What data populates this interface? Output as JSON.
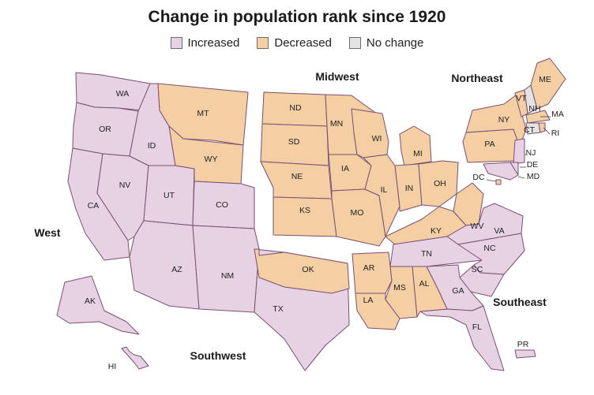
{
  "title": "Change in population rank since 1920",
  "legend": [
    {
      "key": "increased",
      "label": "Increased",
      "color": "#e7d2e3"
    },
    {
      "key": "decreased",
      "label": "Decreased",
      "color": "#f4cfa3"
    },
    {
      "key": "nochange",
      "label": "No change",
      "color": "#e3e3e3"
    }
  ],
  "regions": [
    "West",
    "Midwest",
    "Northeast",
    "Southwest",
    "Southeast"
  ],
  "states": [
    {
      "code": "WA",
      "status": "increased"
    },
    {
      "code": "OR",
      "status": "increased"
    },
    {
      "code": "CA",
      "status": "increased"
    },
    {
      "code": "ID",
      "status": "increased"
    },
    {
      "code": "NV",
      "status": "increased"
    },
    {
      "code": "UT",
      "status": "increased"
    },
    {
      "code": "MT",
      "status": "decreased"
    },
    {
      "code": "WY",
      "status": "decreased"
    },
    {
      "code": "CO",
      "status": "increased"
    },
    {
      "code": "AZ",
      "status": "increased"
    },
    {
      "code": "NM",
      "status": "increased"
    },
    {
      "code": "TX",
      "status": "increased"
    },
    {
      "code": "OK",
      "status": "decreased"
    },
    {
      "code": "ND",
      "status": "decreased"
    },
    {
      "code": "SD",
      "status": "decreased"
    },
    {
      "code": "NE",
      "status": "decreased"
    },
    {
      "code": "KS",
      "status": "decreased"
    },
    {
      "code": "MN",
      "status": "decreased"
    },
    {
      "code": "IA",
      "status": "decreased"
    },
    {
      "code": "MO",
      "status": "decreased"
    },
    {
      "code": "WI",
      "status": "decreased"
    },
    {
      "code": "IL",
      "status": "decreased"
    },
    {
      "code": "MI",
      "status": "decreased"
    },
    {
      "code": "IN",
      "status": "decreased"
    },
    {
      "code": "OH",
      "status": "decreased"
    },
    {
      "code": "KY",
      "status": "decreased"
    },
    {
      "code": "WV",
      "status": "decreased"
    },
    {
      "code": "VA",
      "status": "increased"
    },
    {
      "code": "TN",
      "status": "increased"
    },
    {
      "code": "NC",
      "status": "increased"
    },
    {
      "code": "SC",
      "status": "increased"
    },
    {
      "code": "GA",
      "status": "increased"
    },
    {
      "code": "FL",
      "status": "increased"
    },
    {
      "code": "AL",
      "status": "decreased"
    },
    {
      "code": "MS",
      "status": "decreased"
    },
    {
      "code": "AR",
      "status": "decreased"
    },
    {
      "code": "LA",
      "status": "decreased"
    },
    {
      "code": "PA",
      "status": "decreased"
    },
    {
      "code": "NY",
      "status": "decreased"
    },
    {
      "code": "VT",
      "status": "decreased"
    },
    {
      "code": "NH",
      "status": "nochange"
    },
    {
      "code": "ME",
      "status": "decreased"
    },
    {
      "code": "MA",
      "status": "decreased"
    },
    {
      "code": "CT",
      "status": "nochange"
    },
    {
      "code": "RI",
      "status": "decreased"
    },
    {
      "code": "NJ",
      "status": "increased"
    },
    {
      "code": "DE",
      "status": "increased"
    },
    {
      "code": "MD",
      "status": "increased"
    },
    {
      "code": "DC",
      "status": "decreased"
    },
    {
      "code": "AK",
      "status": "increased"
    },
    {
      "code": "HI",
      "status": "increased"
    },
    {
      "code": "PR",
      "status": "increased"
    }
  ]
}
